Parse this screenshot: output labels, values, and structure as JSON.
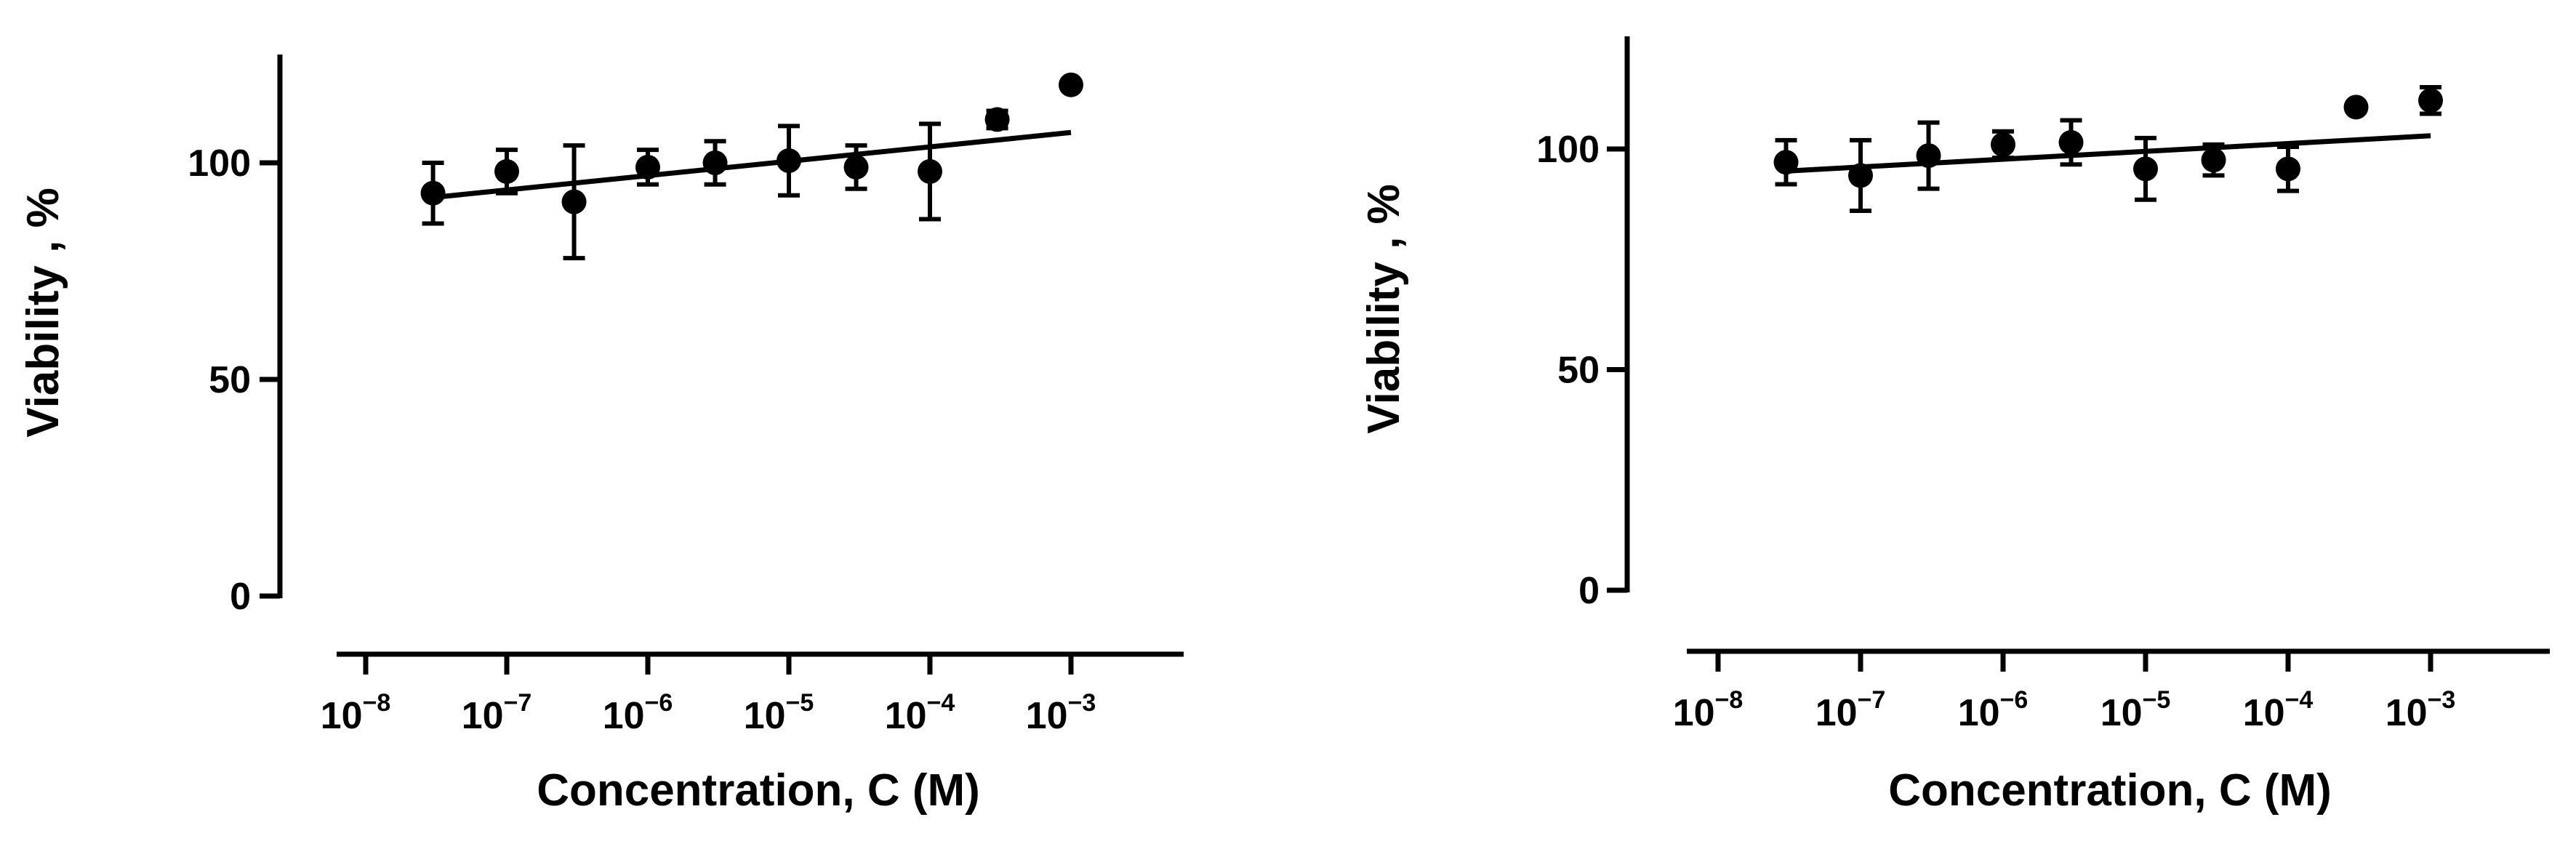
{
  "chart_data": [
    {
      "type": "scatter",
      "title": "",
      "xlabel": "Concentration, C (M)",
      "ylabel": "Viability , %",
      "xscale": "log",
      "xlim": [
        3.16e-09,
        0.01
      ],
      "ylim": [
        0,
        125
      ],
      "yticks": [
        0,
        50,
        100
      ],
      "xticks": [
        {
          "base": "10",
          "exp": "−8",
          "value": 1e-08
        },
        {
          "base": "10",
          "exp": "−7",
          "value": 1e-07
        },
        {
          "base": "10",
          "exp": "−6",
          "value": 1e-06
        },
        {
          "base": "10",
          "exp": "−5",
          "value": 1e-05
        },
        {
          "base": "10",
          "exp": "−4",
          "value": 0.0001
        },
        {
          "base": "10",
          "exp": "−3",
          "value": 0.001
        }
      ],
      "grid": false,
      "points": [
        {
          "x": 3e-08,
          "y": 93,
          "err": 7
        },
        {
          "x": 1e-07,
          "y": 98,
          "err": 5
        },
        {
          "x": 3e-07,
          "y": 91,
          "err": 13
        },
        {
          "x": 1e-06,
          "y": 99,
          "err": 4
        },
        {
          "x": 3e-06,
          "y": 100,
          "err": 5
        },
        {
          "x": 1e-05,
          "y": 100.5,
          "err": 8
        },
        {
          "x": 3e-05,
          "y": 99,
          "err": 5
        },
        {
          "x": 0.0001,
          "y": 98,
          "err": 11
        },
        {
          "x": 0.0003,
          "y": 110,
          "err": 2
        },
        {
          "x": 0.001,
          "y": 118,
          "err": 0
        }
      ],
      "fit_line": {
        "x": [
          3e-08,
          0.001
        ],
        "y": [
          92,
          107
        ]
      }
    },
    {
      "type": "scatter",
      "title": "",
      "xlabel": "Concentration, C (M)",
      "ylabel": "Viability , %",
      "xscale": "log",
      "xlim": [
        3.16e-09,
        0.01
      ],
      "ylim": [
        0,
        125
      ],
      "yticks": [
        0,
        50,
        100
      ],
      "xticks": [
        {
          "base": "10",
          "exp": "−8",
          "value": 1e-08
        },
        {
          "base": "10",
          "exp": "−7",
          "value": 1e-07
        },
        {
          "base": "10",
          "exp": "−6",
          "value": 1e-06
        },
        {
          "base": "10",
          "exp": "−5",
          "value": 1e-05
        },
        {
          "base": "10",
          "exp": "−4",
          "value": 0.0001
        },
        {
          "base": "10",
          "exp": "−3",
          "value": 0.001
        }
      ],
      "grid": false,
      "points": [
        {
          "x": 3e-08,
          "y": 97,
          "err": 5
        },
        {
          "x": 1e-07,
          "y": 94,
          "err": 8
        },
        {
          "x": 3e-07,
          "y": 98.5,
          "err": 7.5
        },
        {
          "x": 1e-06,
          "y": 101,
          "err": 3
        },
        {
          "x": 3e-06,
          "y": 101.5,
          "err": 5
        },
        {
          "x": 1e-05,
          "y": 95.5,
          "err": 7
        },
        {
          "x": 3e-05,
          "y": 97.5,
          "err": 3.5
        },
        {
          "x": 0.0001,
          "y": 95.5,
          "err": 5
        },
        {
          "x": 0.0003,
          "y": 109.5,
          "err": 0
        },
        {
          "x": 0.001,
          "y": 111,
          "err": 3
        }
      ],
      "fit_line": {
        "x": [
          3e-08,
          0.001
        ],
        "y": [
          95,
          103
        ]
      }
    }
  ]
}
